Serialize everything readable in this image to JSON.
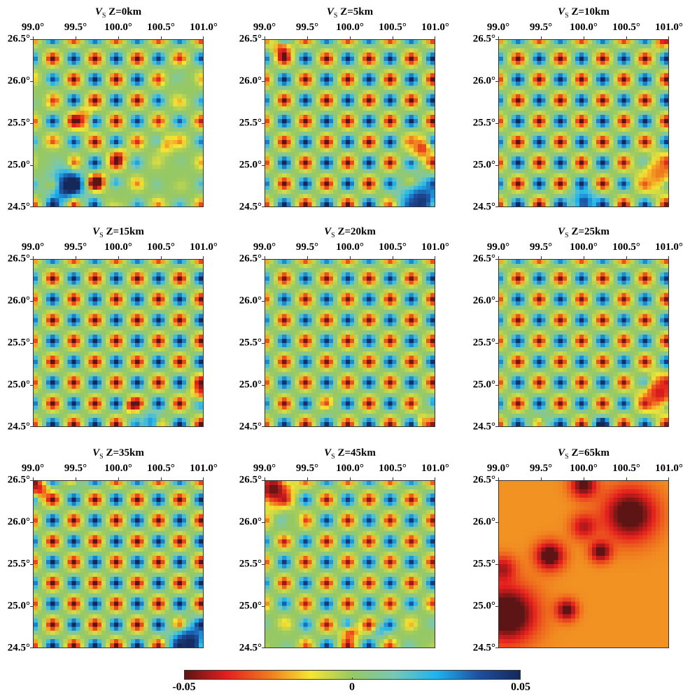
{
  "chart_data": {
    "type": "heatmap",
    "pattern": {
      "spike_spacing_deg": 0.25,
      "amplitude": 0.05,
      "first_spike_negative": true
    },
    "grid": {
      "lon_range": [
        99.0,
        101.0
      ],
      "lat_range": [
        24.5,
        26.5
      ],
      "cell_deg": 0.05
    },
    "x_ticks": [
      "99.0°",
      "99.5°",
      "100.0°",
      "100.5°",
      "101.0°"
    ],
    "x_tick_values": [
      99.0,
      99.5,
      100.0,
      100.5,
      101.0
    ],
    "y_ticks": [
      "26.5°",
      "26.0°",
      "25.5°",
      "25.0°",
      "24.5°"
    ],
    "y_tick_values": [
      26.5,
      26.0,
      25.5,
      25.0,
      24.5
    ],
    "colorbar": {
      "min": -0.05,
      "max": 0.05,
      "labels": [
        "-0.05",
        "0",
        "0.05"
      ],
      "label_values": [
        -0.05,
        0,
        0.05
      ],
      "colors": [
        "#5c1414",
        "#e41e1e",
        "#f0781e",
        "#f5e632",
        "#96c864",
        "#78c8b4",
        "#1eb4f0",
        "#1e50a0",
        "#14285a"
      ]
    },
    "panels": [
      {
        "title_v": "V",
        "title_sub": "S",
        "title_z": "Z=0km",
        "depth_km": 0,
        "checker_amp": 1,
        "suppress": [
          [
            100.65,
            24.9,
            0.5
          ],
          [
            100.8,
            25.95,
            0.28
          ],
          [
            99.15,
            25.0,
            0.3
          ],
          [
            99.0,
            25.85,
            0.22
          ],
          [
            100.0,
            24.6,
            0.2
          ]
        ],
        "blobs": [
          [
            99.4,
            24.75,
            0.05,
            0.2
          ],
          [
            99.75,
            24.8,
            -0.04,
            0.1
          ],
          [
            100.0,
            25.1,
            -0.03,
            0.1
          ],
          [
            99.6,
            25.55,
            -0.03,
            0.12
          ],
          [
            100.55,
            25.25,
            -0.025,
            0.1
          ]
        ],
        "background": 0
      },
      {
        "title_v": "V",
        "title_sub": "S",
        "title_z": "Z=5km",
        "depth_km": 5,
        "checker_amp": 1,
        "suppress": [
          [
            100.8,
            24.6,
            0.3
          ],
          [
            100.8,
            25.2,
            0.15
          ]
        ],
        "blobs": [
          [
            100.85,
            24.55,
            0.045,
            0.25
          ],
          [
            100.85,
            25.2,
            -0.035,
            0.12
          ],
          [
            99.2,
            26.4,
            -0.035,
            0.1
          ]
        ],
        "background": 0
      },
      {
        "title_v": "V",
        "title_sub": "S",
        "title_z": "Z=10km",
        "depth_km": 10,
        "checker_amp": 1,
        "suppress": [
          [
            100.85,
            24.9,
            0.25
          ],
          [
            100.0,
            24.55,
            0.15
          ]
        ],
        "blobs": [
          [
            100.0,
            24.55,
            0.04,
            0.15
          ],
          [
            100.9,
            24.9,
            -0.025,
            0.22
          ],
          [
            100.9,
            26.45,
            -0.02,
            0.08
          ]
        ],
        "background": 0
      },
      {
        "title_v": "V",
        "title_sub": "S",
        "title_z": "Z=15km",
        "depth_km": 15,
        "checker_amp": 1,
        "suppress": [
          [
            100.35,
            24.55,
            0.15
          ],
          [
            101.0,
            24.9,
            0.15
          ]
        ],
        "blobs": [
          [
            100.4,
            24.55,
            0.03,
            0.12
          ],
          [
            100.15,
            24.75,
            -0.03,
            0.08
          ],
          [
            101.0,
            24.95,
            -0.04,
            0.12
          ]
        ],
        "background": 0
      },
      {
        "title_v": "V",
        "title_sub": "S",
        "title_z": "Z=20km",
        "depth_km": 20,
        "checker_amp": 0.95,
        "suppress": [
          [
            100.9,
            24.7,
            0.12
          ]
        ],
        "blobs": [
          [
            99.75,
            24.75,
            0.02,
            0.08
          ],
          [
            100.85,
            24.55,
            -0.02,
            0.08
          ]
        ],
        "background": 0
      },
      {
        "title_v": "V",
        "title_sub": "S",
        "title_z": "Z=25km",
        "depth_km": 25,
        "checker_amp": 0.95,
        "suppress": [
          [
            100.9,
            24.9,
            0.22
          ]
        ],
        "blobs": [
          [
            100.9,
            24.9,
            -0.04,
            0.2
          ],
          [
            99.5,
            24.5,
            0.03,
            0.12
          ],
          [
            100.2,
            24.5,
            0.025,
            0.1
          ]
        ],
        "background": 0
      },
      {
        "title_v": "V",
        "title_sub": "S",
        "title_z": "Z=35km",
        "depth_km": 35,
        "checker_amp": 1,
        "suppress": [
          [
            100.85,
            24.55,
            0.22
          ]
        ],
        "blobs": [
          [
            100.85,
            24.55,
            0.05,
            0.22
          ],
          [
            99.05,
            26.4,
            -0.04,
            0.12
          ],
          [
            99.5,
            26.5,
            0.03,
            0.08
          ]
        ],
        "background": 0
      },
      {
        "title_v": "V",
        "title_sub": "S",
        "title_z": "Z=45km",
        "depth_km": 45,
        "checker_amp": 0.9,
        "suppress": [
          [
            99.1,
            24.6,
            0.35
          ],
          [
            100.9,
            24.6,
            0.35
          ],
          [
            99.05,
            26.4,
            0.28
          ],
          [
            99.3,
            26.0,
            0.15
          ]
        ],
        "blobs": [
          [
            99.1,
            26.4,
            -0.05,
            0.2
          ],
          [
            100.0,
            24.7,
            -0.04,
            0.1
          ],
          [
            100.35,
            24.7,
            0.02,
            0.08
          ]
        ],
        "background": 0
      },
      {
        "title_v": "V",
        "title_sub": "S",
        "title_z": "Z=65km",
        "depth_km": 65,
        "checker_amp": 0,
        "suppress": [],
        "blobs": [
          [
            99.1,
            24.9,
            -0.04,
            0.32
          ],
          [
            99.6,
            25.6,
            -0.035,
            0.16
          ],
          [
            100.2,
            25.65,
            -0.03,
            0.12
          ],
          [
            100.55,
            26.1,
            -0.035,
            0.3
          ],
          [
            100.0,
            26.45,
            -0.03,
            0.15
          ],
          [
            99.8,
            24.95,
            -0.03,
            0.12
          ],
          [
            100.0,
            25.95,
            -0.02,
            0.15
          ],
          [
            99.05,
            25.45,
            -0.02,
            0.15
          ]
        ],
        "background": -0.022
      }
    ]
  }
}
